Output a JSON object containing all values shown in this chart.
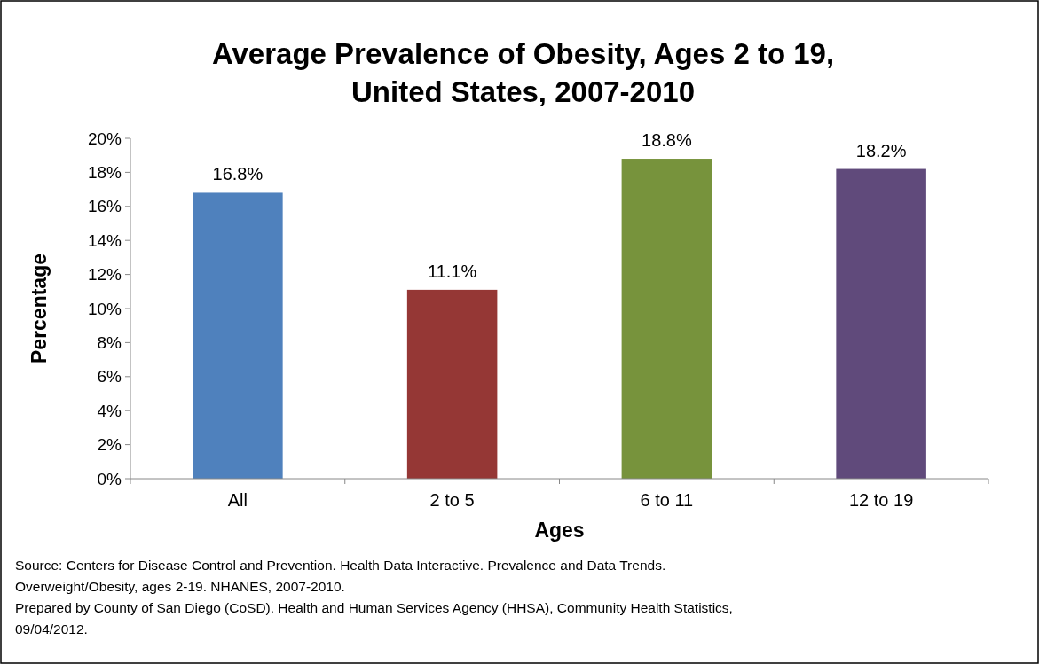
{
  "chart_data": {
    "type": "bar",
    "title": "Average Prevalence of Obesity, Ages 2 to 19,\nUnited States, 2007-2010",
    "xlabel": "Ages",
    "ylabel": "Percentage",
    "categories": [
      "All",
      "2 to 5",
      "6 to 11",
      "12 to 19"
    ],
    "values": [
      16.8,
      11.1,
      18.8,
      18.2
    ],
    "colors": [
      "#4f81bd",
      "#953735",
      "#77933c",
      "#604a7b"
    ],
    "ylim": [
      0,
      20
    ],
    "yticks": [
      {
        "value": 0,
        "label": "0%"
      },
      {
        "value": 2,
        "label": "2%"
      },
      {
        "value": 4,
        "label": "4%"
      },
      {
        "value": 6,
        "label": "6%"
      },
      {
        "value": 8,
        "label": "8%"
      },
      {
        "value": 10,
        "label": "10%"
      },
      {
        "value": 12,
        "label": "12%"
      },
      {
        "value": 14,
        "label": "14%"
      },
      {
        "value": 16,
        "label": "16%"
      },
      {
        "value": 18,
        "label": "18%"
      },
      {
        "value": 20,
        "label": "20%"
      }
    ],
    "value_labels": [
      "16.8%",
      "11.1%",
      "18.8%",
      "18.2%"
    ],
    "grid": false,
    "annotations": [
      "Source: Centers for Disease Control and Prevention. Health Data Interactive. Prevalence and Data Trends.",
      "Overweight/Obesity, ages 2-19. NHANES, 2007-2010.",
      "Prepared by County of San Diego (CoSD). Health and Human Services Agency (HHSA), Community Health Statistics,",
      "09/04/2012."
    ]
  }
}
